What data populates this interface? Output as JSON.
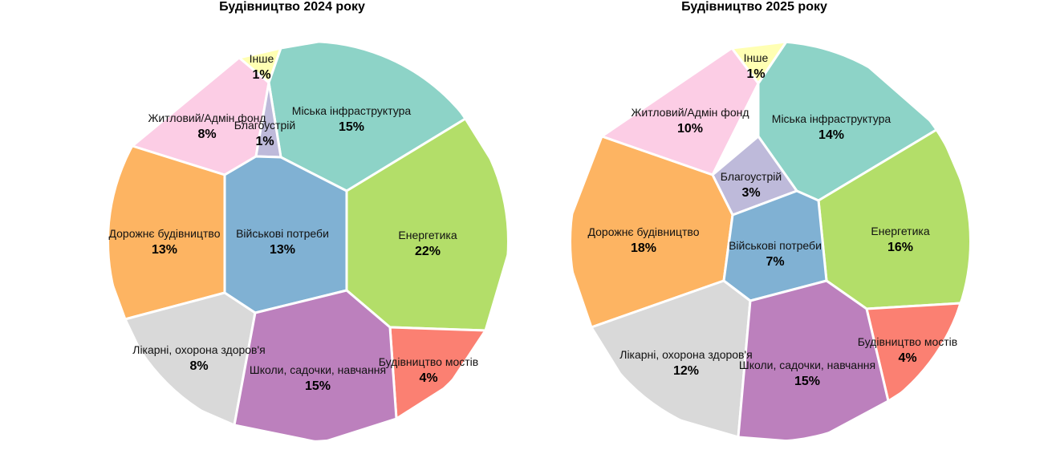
{
  "chart_data": [
    {
      "type": "voronoi-treemap",
      "title": "Будівництво 2024 року",
      "cells": [
        {
          "label": "Інше",
          "value": 1,
          "display": "1%",
          "color": "#ffffb3"
        },
        {
          "label": "Міська інфраструктура",
          "value": 15,
          "display": "15%",
          "color": "#8dd3c7"
        },
        {
          "label": "Житловий/Адмін фонд",
          "value": 8,
          "display": "8%",
          "color": "#fccde5"
        },
        {
          "label": "Благоустрій",
          "value": 1,
          "display": "1%",
          "color": "#bebada"
        },
        {
          "label": "Енергетика",
          "value": 22,
          "display": "22%",
          "color": "#b3de69"
        },
        {
          "label": "Дорожнє будівництво",
          "value": 13,
          "display": "13%",
          "color": "#fdb462"
        },
        {
          "label": "Військові потреби",
          "value": 13,
          "display": "13%",
          "color": "#80b1d3"
        },
        {
          "label": "Лікарні, охорона здоров'я",
          "value": 8,
          "display": "8%",
          "color": "#d9d9d9"
        },
        {
          "label": "Будівництво мостів",
          "value": 4,
          "display": "4%",
          "color": "#fb8072"
        },
        {
          "label": "Школи, садочки, навчання",
          "value": 15,
          "display": "15%",
          "color": "#bc80bd"
        }
      ]
    },
    {
      "type": "voronoi-treemap",
      "title": "Будівництво 2025 року",
      "cells": [
        {
          "label": "Інше",
          "value": 1,
          "display": "1%",
          "color": "#ffffb3"
        },
        {
          "label": "Житловий/Адмін фонд",
          "value": 10,
          "display": "10%",
          "color": "#fccde5"
        },
        {
          "label": "Міська інфраструктура",
          "value": 14,
          "display": "14%",
          "color": "#8dd3c7"
        },
        {
          "label": "Благоустрій",
          "value": 3,
          "display": "3%",
          "color": "#bebada"
        },
        {
          "label": "Енергетика",
          "value": 16,
          "display": "16%",
          "color": "#b3de69"
        },
        {
          "label": "Дорожнє будівництво",
          "value": 18,
          "display": "18%",
          "color": "#fdb462"
        },
        {
          "label": "Військові потреби",
          "value": 7,
          "display": "7%",
          "color": "#80b1d3"
        },
        {
          "label": "Будівництво мостів",
          "value": 4,
          "display": "4%",
          "color": "#fb8072"
        },
        {
          "label": "Лікарні, охорона здоров'я",
          "value": 12,
          "display": "12%",
          "color": "#d9d9d9"
        },
        {
          "label": "Школи, садочки, навчання",
          "value": 15,
          "display": "15%",
          "color": "#bc80bd"
        }
      ]
    }
  ]
}
